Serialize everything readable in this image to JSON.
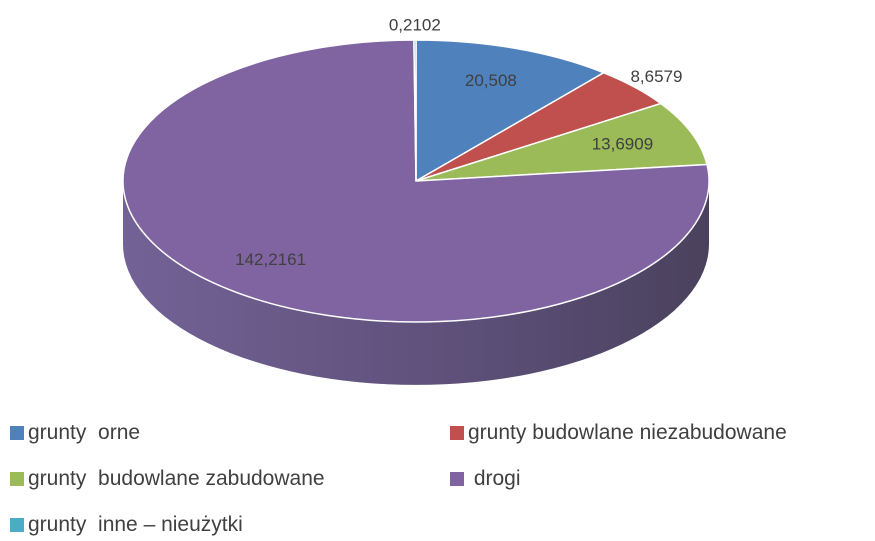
{
  "chart_data": {
    "type": "pie",
    "categories": [
      "grunty  orne",
      "grunty budowlane niezabudowane",
      "grunty  budowlane zabudowane",
      " drogi",
      "grunty  inne – nieużytki"
    ],
    "values": [
      20.508,
      8.6579,
      13.6909,
      142.2161,
      0.2102
    ],
    "value_labels": [
      "20,508",
      "8,6579",
      "13,6909",
      "142,2161",
      "0,2102"
    ],
    "colors": [
      "#4f81bd",
      "#c0504d",
      "#9bbb59",
      "#8064a2",
      "#4bacc6"
    ],
    "legend": "bottom"
  }
}
